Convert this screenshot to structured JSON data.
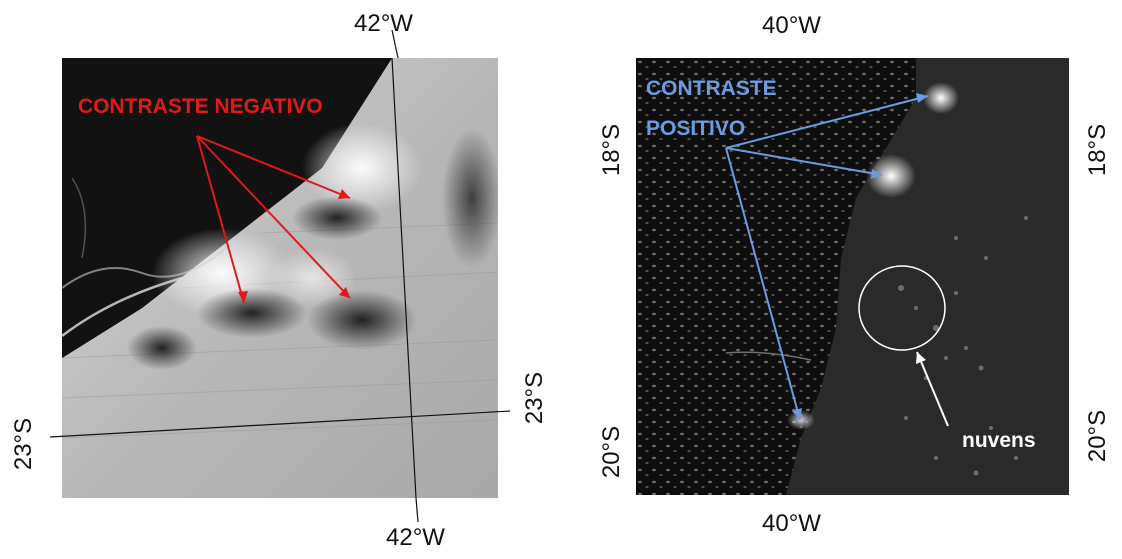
{
  "left_map": {
    "annotation": "CONTRASTE  NEGATIVO",
    "annotation_color": "#e01a1a",
    "lon_top": "42°W",
    "lon_bottom": "42°W",
    "lat_left": "23°S",
    "lat_right": "23°S"
  },
  "right_map": {
    "annotation_line1": "CONTRASTE",
    "annotation_line2": "POSITIVO",
    "annotation_color": "#6b9be0",
    "clouds_label": "nuvens",
    "lon_top": "40°W",
    "lon_bottom": "40°W",
    "lat_left_top": "18°S",
    "lat_left_bottom": "20°S",
    "lat_right_top": "18°S",
    "lat_right_bottom": "20°S"
  }
}
